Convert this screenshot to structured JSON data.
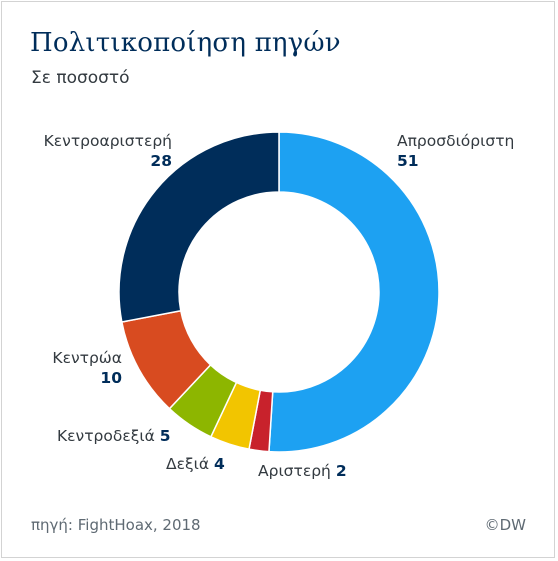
{
  "title": "Πολιτικοποίηση πηγών",
  "subtitle": "Σε ποσοστό",
  "footer": {
    "source": "πηγή: FightHoax, 2018",
    "credit": "©DW"
  },
  "chart_data": {
    "type": "pie",
    "title": "Πολιτικοποίηση πηγών",
    "subtitle": "Σε ποσοστό",
    "categories": [
      "Απροσδιόριστη",
      "Αριστερή",
      "Δεξιά",
      "Κεντροδεξιά",
      "Κεντρώα",
      "Κεντροαριστερή"
    ],
    "values": [
      51,
      2,
      4,
      5,
      10,
      28
    ],
    "colors": [
      "#1da1f2",
      "#c8222c",
      "#f2c500",
      "#8db600",
      "#d84b20",
      "#002d5a"
    ],
    "donut": true
  }
}
